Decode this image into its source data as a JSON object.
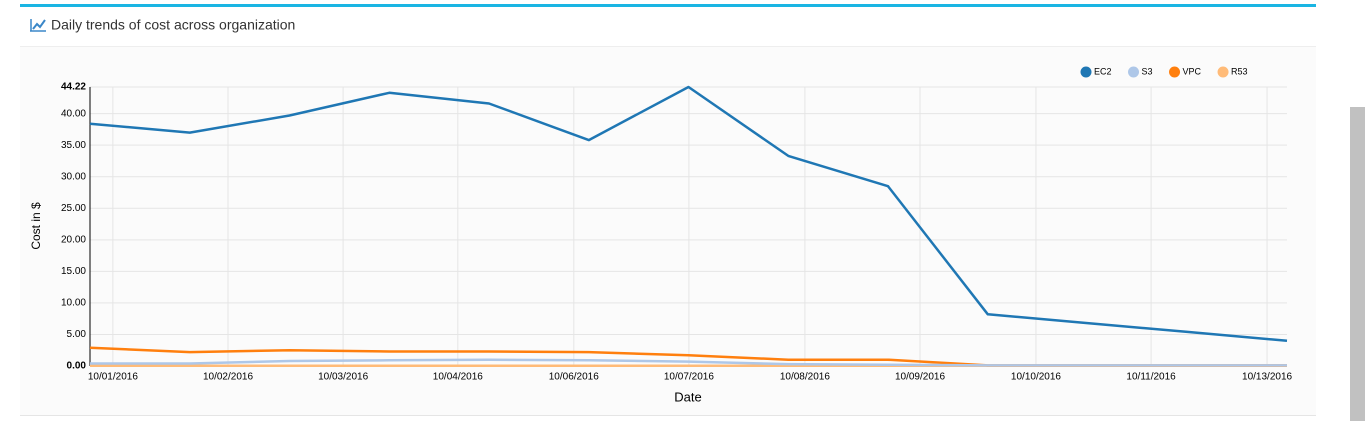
{
  "chart_data": {
    "type": "line",
    "title": "Daily trends of cost across organization",
    "x_label": "Date",
    "y_label": "Cost in $",
    "x": [
      "2016-10-01",
      "2016-10-02",
      "2016-10-03",
      "2016-10-04",
      "2016-10-05",
      "2016-10-06",
      "2016-10-07",
      "2016-10-08",
      "2016-10-09",
      "2016-10-10",
      "2016-10-11",
      "2016-10-12",
      "2016-10-13"
    ],
    "series": [
      {
        "name": "EC2",
        "color": "#1f77b4",
        "values": [
          38.4,
          37.0,
          39.7,
          43.3,
          41.6,
          35.8,
          44.22,
          33.3,
          28.5,
          8.2,
          6.8,
          5.4,
          4.0
        ]
      },
      {
        "name": "S3",
        "color": "#aec7e8",
        "values": [
          0.4,
          0.4,
          0.8,
          0.9,
          1.0,
          0.9,
          0.7,
          0.3,
          0.2,
          0.1,
          0.1,
          0.1,
          0.1
        ]
      },
      {
        "name": "VPC",
        "color": "#ff7f0e",
        "values": [
          2.9,
          2.2,
          2.5,
          2.3,
          2.3,
          2.2,
          1.7,
          1.0,
          1.0,
          0.1,
          0.1,
          0.1,
          0.1
        ]
      },
      {
        "name": "R53",
        "color": "#ffbb78",
        "values": [
          0.05,
          0.05,
          0.05,
          0.05,
          0.05,
          0.05,
          0.05,
          0.05,
          0.05,
          0.05,
          0.05,
          0.05,
          0.05
        ]
      }
    ],
    "xlim": [
      "2016-10-01",
      "2016-10-13"
    ],
    "xticks": [
      {
        "value": "2016-10-01T05:30",
        "label": "10/01/2016"
      },
      {
        "value": "2016-10-02T09:12",
        "label": "10/02/2016"
      },
      {
        "value": "2016-10-03T12:54",
        "label": "10/03/2016"
      },
      {
        "value": "2016-10-04T16:30",
        "label": "10/04/2016"
      },
      {
        "value": "2016-10-05T20:24",
        "label": "10/06/2016"
      },
      {
        "value": "2016-10-07T00:06",
        "label": "10/07/2016"
      },
      {
        "value": "2016-10-08T04:00",
        "label": "10/08/2016"
      },
      {
        "value": "2016-10-09T07:42",
        "label": "10/09/2016"
      },
      {
        "value": "2016-10-10T11:36",
        "label": "10/10/2016"
      },
      {
        "value": "2016-10-11T15:18",
        "label": "10/11/2016"
      },
      {
        "value": "2016-10-12T19:12",
        "label": "10/13/2016"
      }
    ],
    "ylim": [
      0,
      44.22
    ],
    "yticks": [
      {
        "value": 0,
        "label": "0.00"
      },
      {
        "value": 5,
        "label": "5.00"
      },
      {
        "value": 10,
        "label": "10.00"
      },
      {
        "value": 15,
        "label": "15.00"
      },
      {
        "value": 20,
        "label": "20.00"
      },
      {
        "value": 25,
        "label": "25.00"
      },
      {
        "value": 30,
        "label": "30.00"
      },
      {
        "value": 35,
        "label": "35.00"
      },
      {
        "value": 40,
        "label": "40.00"
      },
      {
        "value": 44.22,
        "label": "44.22"
      }
    ],
    "grid": true,
    "legend": "top-right"
  }
}
